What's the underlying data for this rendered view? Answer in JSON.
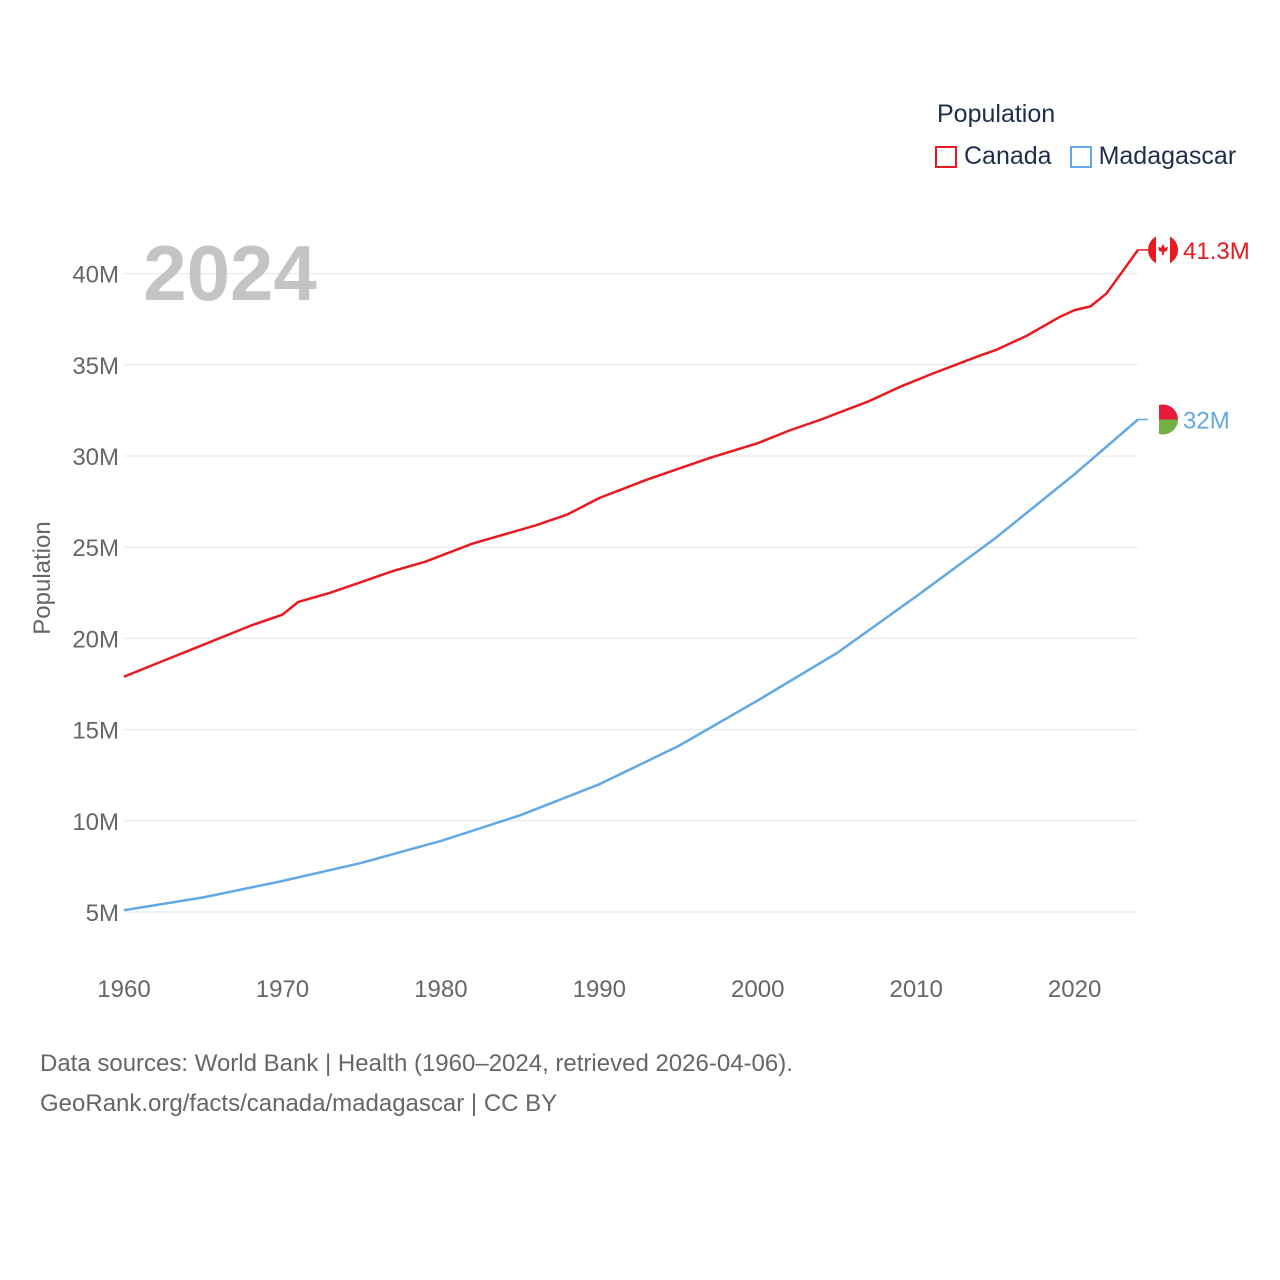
{
  "legend": {
    "title": "Population",
    "items": [
      {
        "name": "Canada",
        "color": "#e8191f"
      },
      {
        "name": "Madagascar",
        "color": "#62a8e5"
      }
    ]
  },
  "footer": {
    "line1": "Data sources: World Bank | Health (1960–2024, retrieved 2026-04-06).",
    "line2": "GeoRank.org/facts/canada/madagascar | CC BY"
  },
  "chart_data": {
    "type": "line",
    "title": "Population",
    "year_label": "2024",
    "ylabel": "Population",
    "xlabel": "",
    "xlim": [
      1960,
      2024
    ],
    "ylim": [
      5000000,
      42000000
    ],
    "x_ticks": [
      1960,
      1970,
      1980,
      1990,
      2000,
      2010,
      2020
    ],
    "y_ticks": [
      {
        "value": 5000000,
        "label": "5M"
      },
      {
        "value": 10000000,
        "label": "10M"
      },
      {
        "value": 15000000,
        "label": "15M"
      },
      {
        "value": 20000000,
        "label": "20M"
      },
      {
        "value": 25000000,
        "label": "25M"
      },
      {
        "value": 30000000,
        "label": "30M"
      },
      {
        "value": 35000000,
        "label": "35M"
      },
      {
        "value": 40000000,
        "label": "40M"
      }
    ],
    "grid": true,
    "legend_position": "top-right",
    "series": [
      {
        "name": "Canada",
        "color": "#e8191f",
        "end_label": "41.3M",
        "points": [
          [
            1960,
            17900000
          ],
          [
            1962,
            18600000
          ],
          [
            1964,
            19300000
          ],
          [
            1966,
            20000000
          ],
          [
            1968,
            20700000
          ],
          [
            1970,
            21300000
          ],
          [
            1971,
            22000000
          ],
          [
            1973,
            22500000
          ],
          [
            1975,
            23100000
          ],
          [
            1977,
            23700000
          ],
          [
            1979,
            24200000
          ],
          [
            1982,
            25200000
          ],
          [
            1986,
            26200000
          ],
          [
            1988,
            26800000
          ],
          [
            1990,
            27700000
          ],
          [
            1993,
            28700000
          ],
          [
            1997,
            29900000
          ],
          [
            2000,
            30700000
          ],
          [
            2002,
            31400000
          ],
          [
            2004,
            32000000
          ],
          [
            2007,
            33000000
          ],
          [
            2009,
            33800000
          ],
          [
            2011,
            34500000
          ],
          [
            2014,
            35500000
          ],
          [
            2015,
            35800000
          ],
          [
            2017,
            36600000
          ],
          [
            2019,
            37600000
          ],
          [
            2020,
            38000000
          ],
          [
            2021,
            38200000
          ],
          [
            2022,
            38900000
          ],
          [
            2023,
            40100000
          ],
          [
            2024,
            41300000
          ]
        ]
      },
      {
        "name": "Madagascar",
        "color": "#62a8e5",
        "end_label": "32M",
        "points": [
          [
            1960,
            5100000
          ],
          [
            1965,
            5800000
          ],
          [
            1970,
            6700000
          ],
          [
            1975,
            7700000
          ],
          [
            1980,
            8900000
          ],
          [
            1985,
            10300000
          ],
          [
            1990,
            12000000
          ],
          [
            1995,
            14100000
          ],
          [
            2000,
            16600000
          ],
          [
            2005,
            19200000
          ],
          [
            2010,
            22300000
          ],
          [
            2015,
            25500000
          ],
          [
            2020,
            29000000
          ],
          [
            2024,
            32000000
          ]
        ]
      }
    ]
  }
}
